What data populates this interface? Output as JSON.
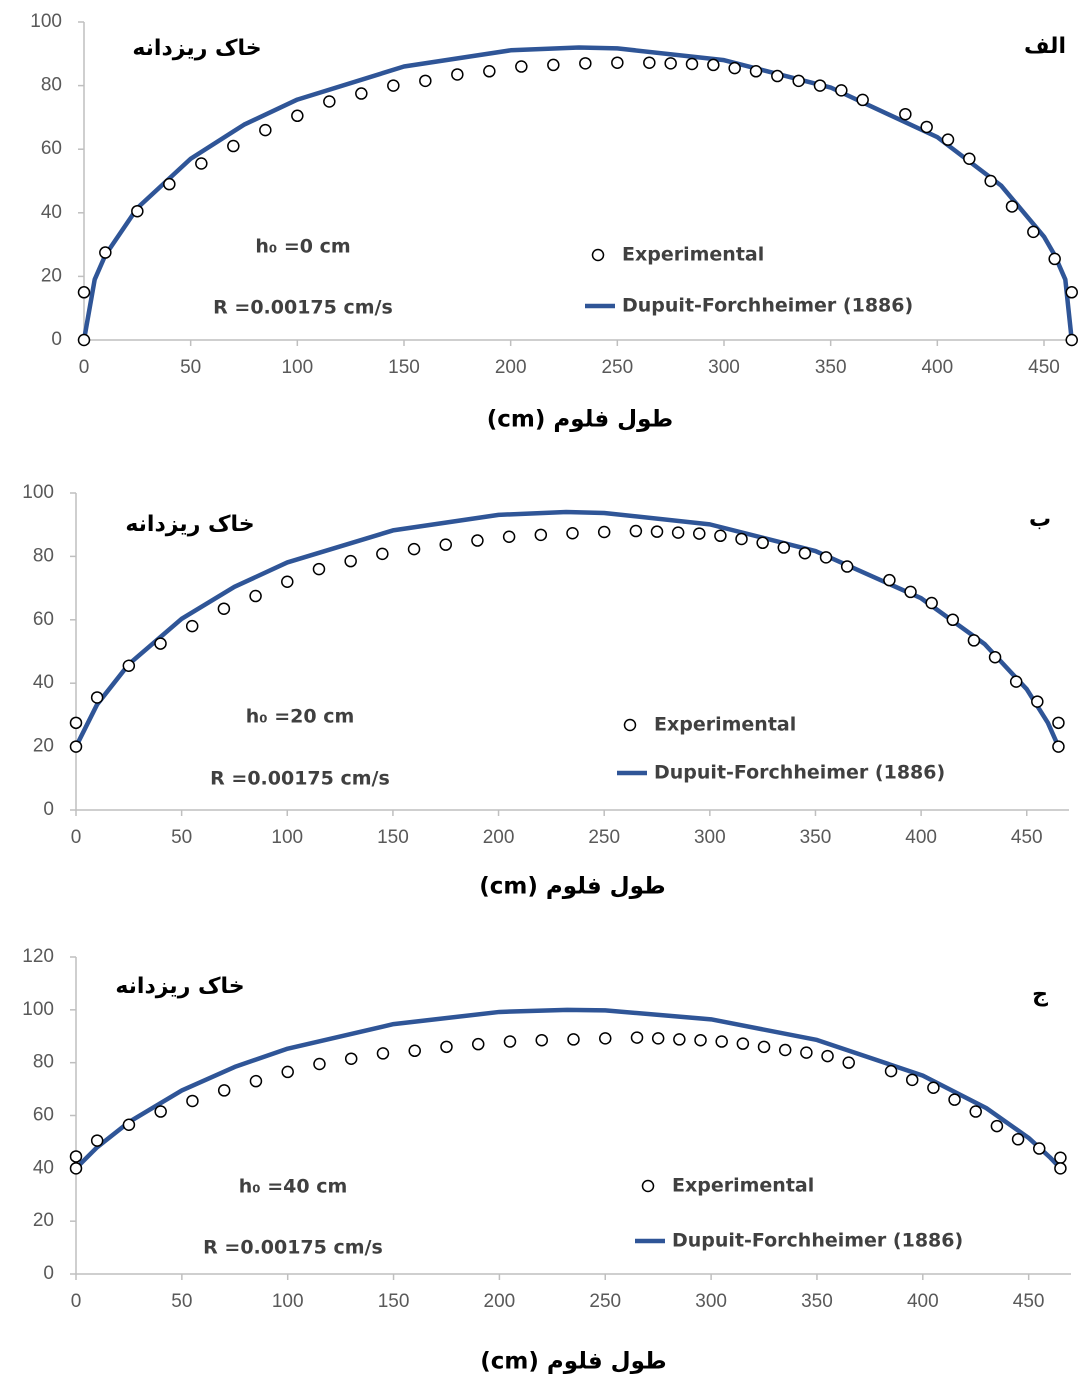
{
  "chart_data": [
    {
      "type": "scatter",
      "panel_label": "الف",
      "soil_label": "خاک ریزدانه",
      "annotations": [
        "h₀ =0 cm",
        "R =0.00175 cm/s"
      ],
      "x_label": "طول فلوم (cm)",
      "xlim": [
        0,
        465
      ],
      "xticks": [
        0,
        50,
        100,
        150,
        200,
        250,
        300,
        350,
        400,
        450
      ],
      "ylim": [
        0,
        100
      ],
      "yticks": [
        0,
        20,
        40,
        60,
        80,
        100
      ],
      "series": [
        {
          "name": "Experimental",
          "style": "marker",
          "color": "#000000",
          "x": [
            0,
            0,
            10,
            25,
            40,
            55,
            70,
            85,
            100,
            115,
            130,
            145,
            160,
            175,
            190,
            205,
            220,
            235,
            250,
            265,
            275,
            285,
            295,
            305,
            315,
            325,
            335,
            345,
            355,
            365,
            385,
            395,
            405,
            415,
            425,
            435,
            445,
            455,
            463,
            463
          ],
          "values": [
            15,
            0,
            27.5,
            40.5,
            49,
            55.5,
            61,
            66,
            70.5,
            75,
            77.5,
            80,
            81.5,
            83.5,
            84.5,
            86,
            86.5,
            87,
            87.2,
            87.2,
            87,
            86.8,
            86.5,
            85.5,
            84.5,
            83,
            81.5,
            80,
            78.5,
            75.5,
            71,
            67,
            63,
            57,
            50,
            42,
            34,
            25.5,
            15,
            0
          ]
        },
        {
          "name": "Dupuit-Forchheimer (1886)",
          "style": "line",
          "color": "#2f5597",
          "x": [
            0,
            5,
            10,
            25,
            50,
            75,
            100,
            150,
            200,
            232,
            250,
            300,
            350,
            400,
            430,
            450,
            455,
            460,
            463
          ],
          "values": [
            0,
            19,
            26.7,
            41.5,
            57,
            67.7,
            75.6,
            86,
            91.1,
            92,
            91.7,
            88,
            79.4,
            63.8,
            48.5,
            32.5,
            26.7,
            19,
            0
          ]
        }
      ]
    },
    {
      "type": "scatter",
      "panel_label": "ب",
      "soil_label": "خاک ریزدانه",
      "annotations": [
        "h₀ =20 cm",
        "R =0.00175 cm/s"
      ],
      "x_label": "طول فلوم (cm)",
      "xlim": [
        0,
        470
      ],
      "xticks": [
        0,
        50,
        100,
        150,
        200,
        250,
        300,
        350,
        400,
        450
      ],
      "ylim": [
        0,
        100
      ],
      "yticks": [
        0,
        20,
        40,
        60,
        80,
        100
      ],
      "series": [
        {
          "name": "Experimental",
          "style": "marker",
          "color": "#000000",
          "x": [
            0,
            0,
            10,
            25,
            40,
            55,
            70,
            85,
            100,
            115,
            130,
            145,
            160,
            175,
            190,
            205,
            220,
            235,
            250,
            265,
            275,
            285,
            295,
            305,
            315,
            325,
            335,
            345,
            355,
            365,
            385,
            395,
            405,
            415,
            425,
            435,
            445,
            455,
            465,
            465
          ],
          "values": [
            27.5,
            20,
            35.5,
            45.5,
            52.5,
            58,
            63.5,
            67.5,
            72,
            76,
            78.5,
            80.8,
            82.3,
            83.7,
            85,
            86.2,
            86.8,
            87.3,
            87.7,
            88,
            87.8,
            87.5,
            87.2,
            86.5,
            85.5,
            84.3,
            82.8,
            81,
            79.7,
            76.8,
            72.5,
            68.8,
            65.3,
            60,
            53.5,
            48.2,
            40.5,
            34.2,
            27.5,
            20
          ]
        },
        {
          "name": "Dupuit-Forchheimer (1886)",
          "style": "line",
          "color": "#2f5597",
          "x": [
            0,
            10,
            25,
            50,
            75,
            100,
            150,
            200,
            232,
            250,
            300,
            350,
            400,
            430,
            450,
            460,
            465
          ],
          "values": [
            20,
            33.3,
            46,
            60.3,
            70.4,
            78.1,
            88.2,
            93.1,
            94,
            93.7,
            90.1,
            81.7,
            66.8,
            52.4,
            38.1,
            27.5,
            20
          ]
        }
      ]
    },
    {
      "type": "scatter",
      "panel_label": "ج",
      "soil_label": "خاک ریزدانه",
      "annotations": [
        "h₀ =40 cm",
        "R =0.00175 cm/s"
      ],
      "x_label": "طول فلوم (cm)",
      "xlim": [
        0,
        470
      ],
      "xticks": [
        0,
        50,
        100,
        150,
        200,
        250,
        300,
        350,
        400,
        450
      ],
      "ylim": [
        0,
        120
      ],
      "yticks": [
        0,
        20,
        40,
        60,
        80,
        100,
        120
      ],
      "series": [
        {
          "name": "Experimental",
          "style": "marker",
          "color": "#000000",
          "x": [
            0,
            0,
            10,
            25,
            40,
            55,
            70,
            85,
            100,
            115,
            130,
            145,
            160,
            175,
            190,
            205,
            220,
            235,
            250,
            265,
            275,
            285,
            295,
            305,
            315,
            325,
            335,
            345,
            355,
            365,
            385,
            395,
            405,
            415,
            425,
            435,
            445,
            455,
            465,
            465
          ],
          "values": [
            44.5,
            40,
            50.5,
            56.5,
            61.5,
            65.5,
            69.5,
            73,
            76.5,
            79.5,
            81.5,
            83.5,
            84.5,
            86,
            87,
            88,
            88.5,
            88.8,
            89.2,
            89.5,
            89.2,
            88.8,
            88.5,
            88,
            87.2,
            86,
            84.8,
            83.8,
            82.5,
            80,
            76.8,
            73.5,
            70.5,
            66,
            61.5,
            56,
            51,
            47.5,
            44,
            40
          ]
        },
        {
          "name": "Dupuit-Forchheimer (1886)",
          "style": "line",
          "color": "#2f5597",
          "x": [
            0,
            10,
            25,
            50,
            75,
            100,
            150,
            200,
            232,
            250,
            300,
            350,
            400,
            430,
            450,
            460,
            465
          ],
          "values": [
            40,
            48,
            57.5,
            69.5,
            78.4,
            85.3,
            94.6,
            99.2,
            100,
            99.8,
            96.4,
            88.6,
            75.1,
            62.8,
            51.5,
            44.2,
            40
          ]
        }
      ]
    }
  ]
}
